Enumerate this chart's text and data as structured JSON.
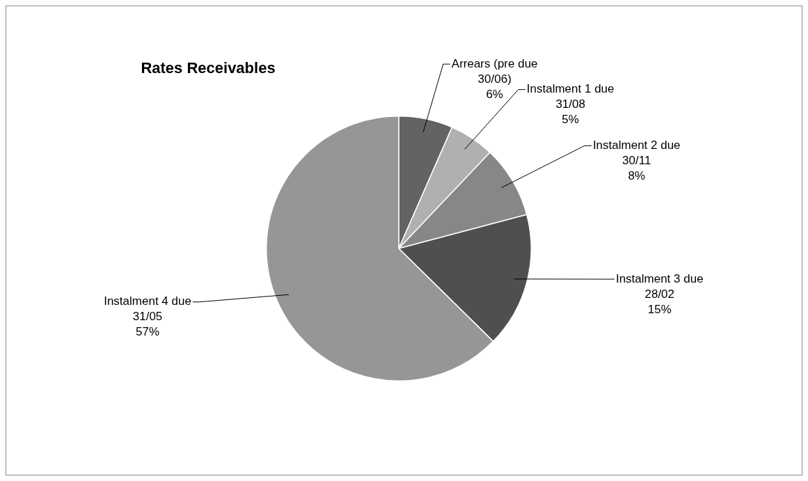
{
  "chart_data": {
    "type": "pie",
    "title": "Rates Receivables",
    "categories": [
      "Arrears (pre due 30/06)",
      "Instalment 1 due 31/08",
      "Instalment 2 due 30/11",
      "Instalment 3 due 28/02",
      "Instalment 4 due 31/05"
    ],
    "values": [
      6,
      5,
      8,
      15,
      57
    ],
    "value_labels": [
      "6%",
      "5%",
      "8%",
      "15%",
      "57%"
    ],
    "colors": [
      "#636363",
      "#b0b0b0",
      "#878787",
      "#4f4f4f",
      "#969696"
    ],
    "legend": false
  }
}
